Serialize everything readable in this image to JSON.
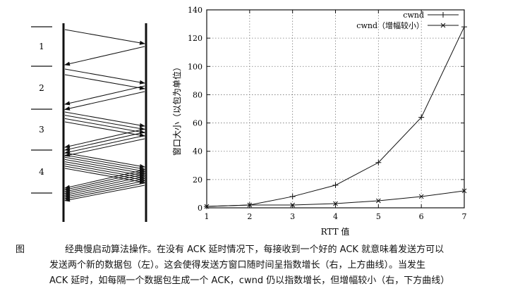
{
  "seq_diagram": {
    "rounds": [
      "1",
      "2",
      "3",
      "4"
    ],
    "arrows_per_round": [
      1,
      2,
      4,
      8
    ]
  },
  "chart_data": {
    "type": "line",
    "title": "",
    "xlabel": "RTT 值",
    "ylabel": "窗口大小（以包为单位）",
    "xlim": [
      1,
      7
    ],
    "ylim": [
      0,
      140
    ],
    "x": [
      1,
      2,
      3,
      4,
      5,
      6,
      7
    ],
    "xticks": [
      1,
      2,
      3,
      4,
      5,
      6,
      7
    ],
    "yticks": [
      0,
      20,
      40,
      60,
      80,
      100,
      120,
      140
    ],
    "grid": true,
    "legend": "top-right",
    "series": [
      {
        "name": "cwnd",
        "marker": "+",
        "values": [
          1,
          2,
          8,
          16,
          32,
          64,
          128
        ]
      },
      {
        "name": "cwnd（增幅较小）",
        "marker": "x",
        "values": [
          1,
          2,
          2,
          3,
          5,
          8,
          12
        ]
      }
    ]
  },
  "caption": {
    "label": "图",
    "lines": [
      "经典慢启动算法操作。在没有 ACK 延时情况下，每接收到一个好的 ACK 就意味着发送方可以",
      "发送两个新的数据包（左）。这会使得发送方窗口随时间呈指数增长（右，上方曲线）。当发生",
      "ACK 延时，如每隔一个数据包生成一个 ACK，cwnd 仍以指数增长，但增幅较小（右，下方曲线）"
    ]
  }
}
